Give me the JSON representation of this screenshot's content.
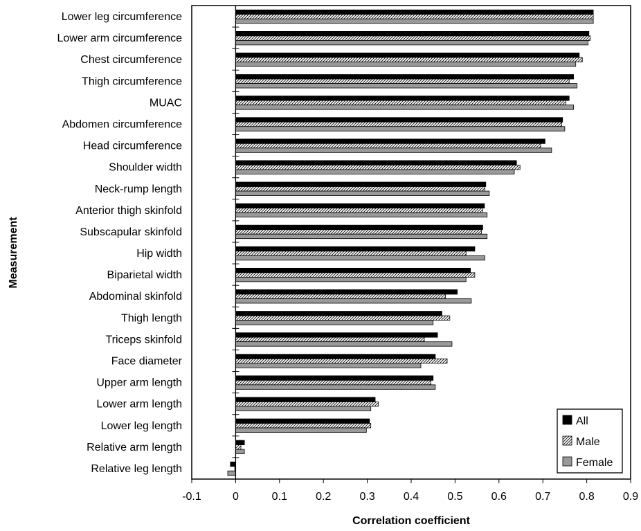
{
  "chart_data": {
    "type": "bar",
    "orientation": "horizontal",
    "xlabel": "Correlation coefficient",
    "ylabel": "Measurement",
    "xlim": [
      -0.1,
      0.9
    ],
    "xticks": [
      "-0.1",
      "0",
      "0.1",
      "0.2",
      "0.3",
      "0.4",
      "0.5",
      "0.6",
      "0.7",
      "0.8",
      "0.9"
    ],
    "grid": false,
    "legend_position": "bottom-right",
    "categories": [
      "Lower leg circumference",
      "Lower arm circumference",
      "Chest circumference",
      "Thigh circumference",
      "MUAC",
      "Abdomen circumference",
      "Head circumference",
      "Shoulder width",
      "Neck-rump length",
      "Anterior thigh skinfold",
      "Subscapular skinfold",
      "Hip width",
      "Biparietal width",
      "Abdominal skinfold",
      "Thigh length",
      "Triceps skinfold",
      "Face diameter",
      "Upper arm length",
      "Lower arm length",
      "Lower leg length",
      "Relative arm length",
      "Relative leg length"
    ],
    "series": [
      {
        "name": "All",
        "color": "#000000",
        "pattern": "solid",
        "values": [
          0.815,
          0.805,
          0.783,
          0.77,
          0.76,
          0.745,
          0.705,
          0.64,
          0.57,
          0.567,
          0.563,
          0.545,
          0.535,
          0.505,
          0.47,
          0.46,
          0.455,
          0.45,
          0.318,
          0.305,
          0.02,
          -0.012
        ]
      },
      {
        "name": "Male",
        "color": "#ffffff",
        "pattern": "hatch",
        "values": [
          0.815,
          0.808,
          0.79,
          0.76,
          0.752,
          0.743,
          0.695,
          0.648,
          0.568,
          0.563,
          0.56,
          0.525,
          0.545,
          0.478,
          0.488,
          0.43,
          0.482,
          0.445,
          0.325,
          0.308,
          0.012,
          -0.002
        ]
      },
      {
        "name": "Female",
        "color": "#999999",
        "pattern": "solid",
        "values": [
          0.815,
          0.803,
          0.775,
          0.778,
          0.77,
          0.75,
          0.72,
          0.635,
          0.578,
          0.573,
          0.573,
          0.568,
          0.525,
          0.537,
          0.45,
          0.493,
          0.422,
          0.455,
          0.308,
          0.298,
          0.02,
          -0.018
        ]
      }
    ]
  }
}
